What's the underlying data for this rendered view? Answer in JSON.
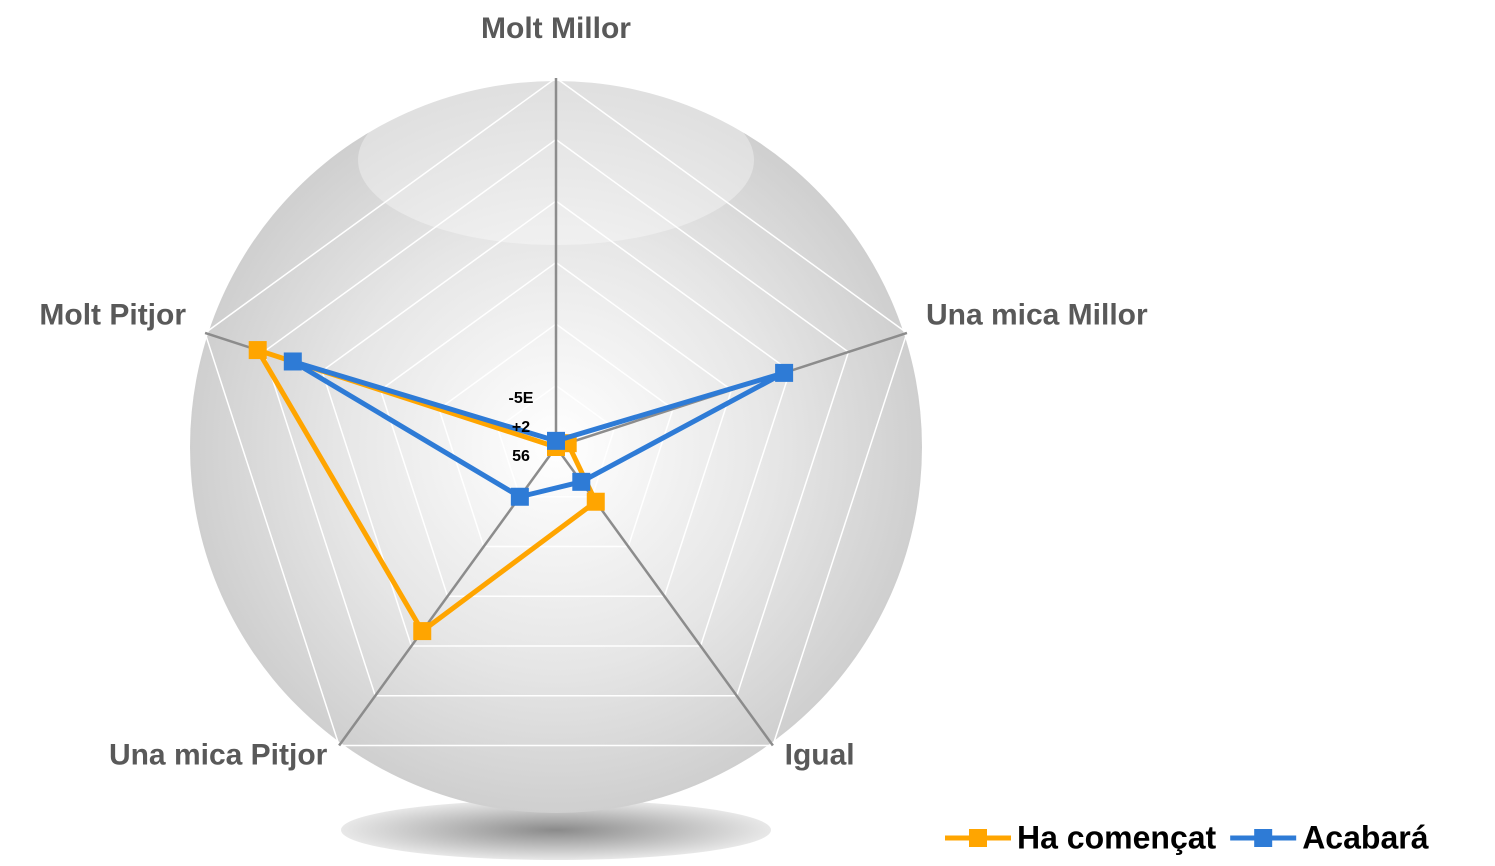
{
  "chart_data": {
    "type": "radar",
    "categories": [
      "Molt Millor",
      "Una mica Millor",
      "Igual",
      "Una mica Pitjor",
      "Molt Pitjor"
    ],
    "series": [
      {
        "name": "Ha començat",
        "color": "#ffa500",
        "values": [
          0,
          0.2,
          1.1,
          3.7,
          5.1
        ]
      },
      {
        "name": "Acabará",
        "color": "#2e7bd6",
        "values": [
          0.1,
          3.9,
          0.7,
          1.0,
          4.5
        ]
      }
    ],
    "rlim": [
      0,
      6
    ],
    "rticks": [
      1,
      2,
      3,
      4,
      5,
      6
    ],
    "center_label": "-5E+256",
    "legend": "bottom-right"
  }
}
